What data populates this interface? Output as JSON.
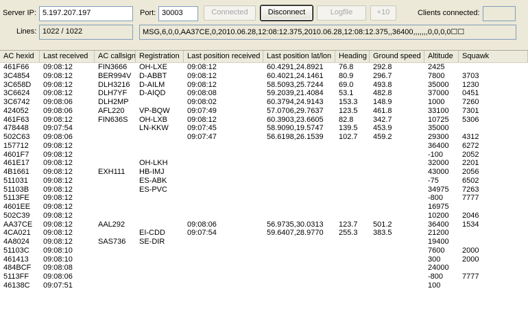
{
  "top": {
    "server_ip_label": "Server IP:",
    "server_ip_value": "5.197.207.197",
    "port_label": "Port:",
    "port_value": "30003",
    "connected_label": "Connected",
    "disconnect_label": "Disconnect",
    "logfile_label": "Logfile",
    "plus10_label": "+10",
    "clients_label": "Clients connected:",
    "clients_value": "",
    "lines_label": "Lines:",
    "lines_value": "1022 / 1022",
    "message_value": "MSG,6,0,0,AA37CE,0,2010.06.28,12:08:12.375,2010.06.28,12:08:12.375,,36400,,,,,,,0,0,0,0☐☐"
  },
  "table": {
    "columns": [
      "AC hexid",
      "Last received",
      "AC callsign",
      "Registration",
      "Last position received",
      "Last position lat/lon",
      "Heading",
      "Ground speed",
      "Altitude",
      "Squawk"
    ],
    "rows": [
      [
        "461F66",
        "09:08:12",
        "FIN3666",
        "OH-LXE",
        "09:08:12",
        "60.4291,24.8921",
        "76.8",
        "292.8",
        "2425",
        ""
      ],
      [
        "3C4854",
        "09:08:12",
        "BER994V",
        "D-ABBT",
        "09:08:12",
        "60.4021,24.1461",
        "80.9",
        "296.7",
        "7800",
        "3703"
      ],
      [
        "3C658D",
        "09:08:12",
        "DLH3216",
        "D-AILM",
        "09:08:12",
        "58.5093,25.7244",
        "69.0",
        "493.8",
        "35000",
        "1230"
      ],
      [
        "3C6624",
        "09:08:12",
        "DLH7YF",
        "D-AIQD",
        "09:08:08",
        "59.2039,21.4084",
        "53.1",
        "482.8",
        "37000",
        "0451"
      ],
      [
        "3C6742",
        "09:08:06",
        "DLH2MP",
        "",
        "09:08:02",
        "60.3794,24.9143",
        "153.3",
        "148.9",
        "1000",
        "7260"
      ],
      [
        "424052",
        "09:08:06",
        "AFL220",
        "VP-BQW",
        "09:07:49",
        "57.0706,29.7637",
        "123.5",
        "461.8",
        "33100",
        "7301"
      ],
      [
        "461F63",
        "09:08:12",
        "FIN636S",
        "OH-LXB",
        "09:08:12",
        "60.3903,23.6605",
        "82.8",
        "342.7",
        "10725",
        "5306"
      ],
      [
        "478448",
        "09:07:54",
        "",
        "LN-KKW",
        "09:07:45",
        "58.9090,19.5747",
        "139.5",
        "453.9",
        "35000",
        ""
      ],
      [
        "502C63",
        "09:08:06",
        "",
        "",
        "09:07:47",
        "56.6198,26.1539",
        "102.7",
        "459.2",
        "29300",
        "4312"
      ],
      [
        "157712",
        "09:08:12",
        "",
        "",
        "",
        "",
        "",
        "",
        "36400",
        "6272"
      ],
      [
        "4601F7",
        "09:08:12",
        "",
        "",
        "",
        "",
        "",
        "",
        "-100",
        "2052"
      ],
      [
        "461E17",
        "09:08:12",
        "",
        "OH-LKH",
        "",
        "",
        "",
        "",
        "32000",
        "2201"
      ],
      [
        "4B1661",
        "09:08:12",
        "EXH111",
        "HB-IMJ",
        "",
        "",
        "",
        "",
        "43000",
        "2056"
      ],
      [
        "511031",
        "09:08:12",
        "",
        "ES-ABK",
        "",
        "",
        "",
        "",
        "-75",
        "6502"
      ],
      [
        "51103B",
        "09:08:12",
        "",
        "ES-PVC",
        "",
        "",
        "",
        "",
        "34975",
        "7263"
      ],
      [
        "5113FE",
        "09:08:12",
        "",
        "",
        "",
        "",
        "",
        "",
        "-800",
        "7777"
      ],
      [
        "4601EE",
        "09:08:12",
        "",
        "",
        "",
        "",
        "",
        "",
        "16975",
        ""
      ],
      [
        "502C39",
        "09:08:12",
        "",
        "",
        "",
        "",
        "",
        "",
        "10200",
        "2046"
      ],
      [
        "AA37CE",
        "09:08:12",
        "AAL292",
        "",
        "09:08:06",
        "56.9735,30.0313",
        "123.7",
        "501.2",
        "36400",
        "1534"
      ],
      [
        "4CA021",
        "09:08:12",
        "",
        "EI-CDD",
        "09:07:54",
        "59.6407,28.9770",
        "255.3",
        "383.5",
        "21200",
        ""
      ],
      [
        "4A8024",
        "09:08:12",
        "SAS736",
        "SE-DIR",
        "",
        "",
        "",
        "",
        "19400",
        ""
      ],
      [
        "51103C",
        "09:08:10",
        "",
        "",
        "",
        "",
        "",
        "",
        "7600",
        "2000"
      ],
      [
        "461413",
        "09:08:10",
        "",
        "",
        "",
        "",
        "",
        "",
        "300",
        "2000"
      ],
      [
        "484BCF",
        "09:08:08",
        "",
        "",
        "",
        "",
        "",
        "",
        "24000",
        ""
      ],
      [
        "5113FF",
        "09:08:06",
        "",
        "",
        "",
        "",
        "",
        "",
        "-800",
        "7777"
      ],
      [
        "46138C",
        "09:07:51",
        "",
        "",
        "",
        "",
        "",
        "",
        "100",
        ""
      ]
    ]
  }
}
